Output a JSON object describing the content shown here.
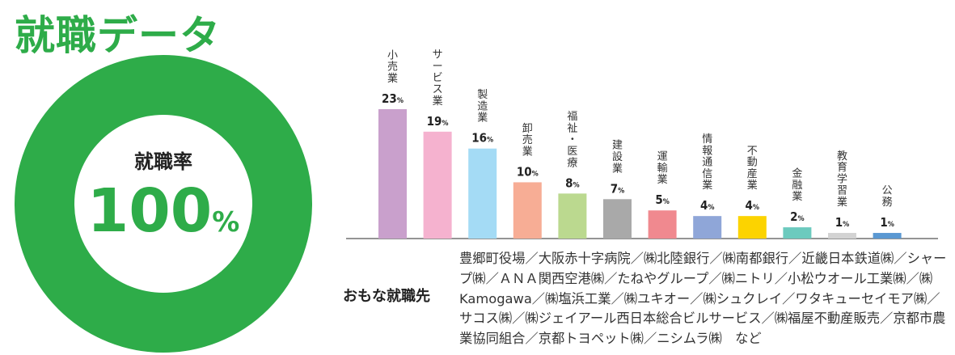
{
  "title": "就職データ",
  "employment_rate": {
    "label": "就職率",
    "value": 100,
    "unit": "%",
    "color": "#2eac49"
  },
  "chart_data": {
    "type": "bar",
    "categories": [
      "小売業",
      "サービス業",
      "製造業",
      "卸売業",
      "福祉・医療",
      "建設業",
      "運輸業",
      "情報通信業",
      "不動産業",
      "金融業",
      "教育学習業",
      "公務"
    ],
    "values": [
      23,
      19,
      16,
      10,
      8,
      7,
      5,
      4,
      4,
      2,
      1,
      1
    ],
    "value_unit": "%",
    "colors": [
      "#c9a0cc",
      "#f5b2cf",
      "#a4dbf5",
      "#f7ad95",
      "#bbd98f",
      "#a9a9a9",
      "#f0898f",
      "#8fa6d8",
      "#fcd300",
      "#6ccabe",
      "#d3d3d3",
      "#5a98d2"
    ],
    "title": "",
    "xlabel": "",
    "ylabel": "",
    "ylim": [
      0,
      23
    ],
    "grid": false
  },
  "employers": {
    "label": "おもな就職先",
    "text": "豊郷町役場／大阪赤十字病院／㈱北陸銀行／㈱南都銀行／近畿日本鉄道㈱／シャープ㈱／ＡＮＡ関西空港㈱／たねやグループ／㈱ニトリ／小松ウオール工業㈱／㈱Kamogawa／㈱塩浜工業／㈱ユキオー／㈱シュクレイ／ワタキューセイモア㈱／サコス㈱／㈱ジェイアール西日本総合ビルサービス／㈱福屋不動産販売／京都市農業協同組合／京都トヨペット㈱／ニシムラ㈱　など"
  }
}
